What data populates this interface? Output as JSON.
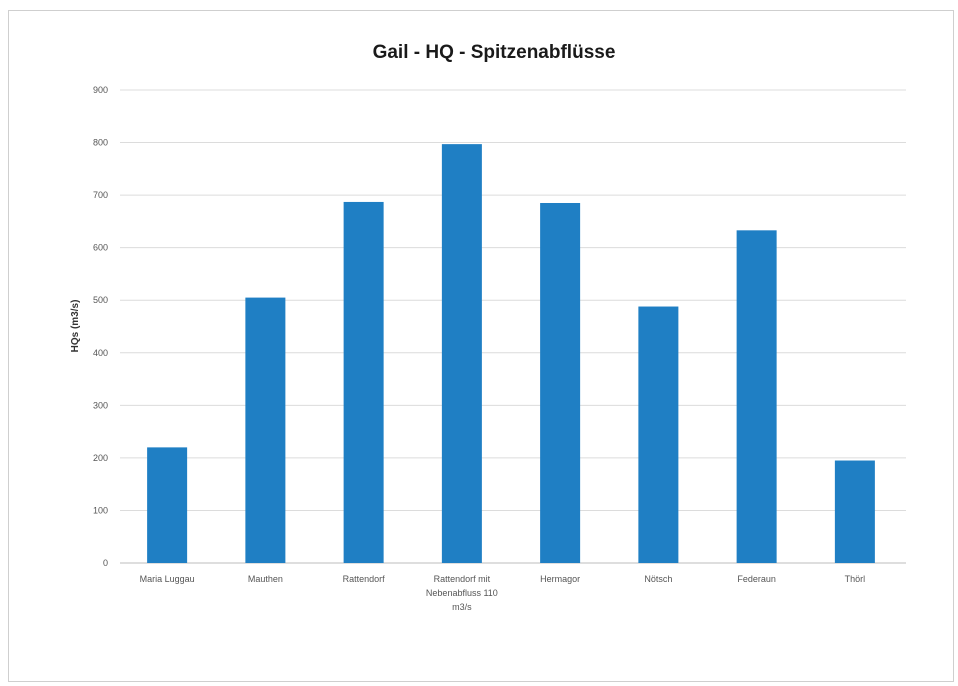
{
  "chart_data": {
    "type": "bar",
    "title": "Gail - HQ - Spitzenabflüsse",
    "ylabel": "HQs (m3/s)",
    "xlabel": "",
    "ylim": [
      0,
      900
    ],
    "yticks": [
      0,
      100,
      200,
      300,
      400,
      500,
      600,
      700,
      800,
      900
    ],
    "grid": true,
    "categories": [
      "Maria Luggau",
      "Mauthen",
      "Rattendorf",
      "Rattendorf mit Nebenabfluss 110 m3/s",
      "Hermagor",
      "Nötsch",
      "Federaun",
      "Thörl"
    ],
    "category_lines": [
      [
        "Maria Luggau"
      ],
      [
        "Mauthen"
      ],
      [
        "Rattendorf"
      ],
      [
        "Rattendorf mit",
        "Nebenabfluss 110",
        "m3/s"
      ],
      [
        "Hermagor"
      ],
      [
        "Nötsch"
      ],
      [
        "Federaun"
      ],
      [
        "Thörl"
      ]
    ],
    "values": [
      220,
      505,
      687,
      797,
      685,
      488,
      633,
      195
    ],
    "bar_color": "#1f7fc4"
  }
}
